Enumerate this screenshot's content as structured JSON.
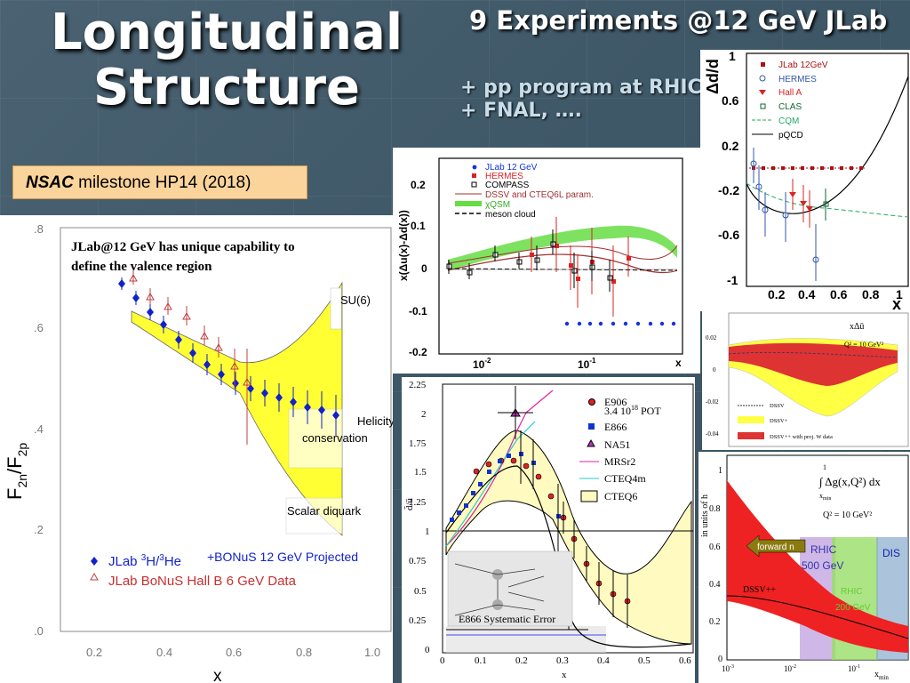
{
  "slide": {
    "title_line1": "Longitudinal",
    "title_line2": "Structure",
    "subtitle": "9 Experiments @12 GeV JLab",
    "extra_line1": "+ pp program at RHIC",
    "extra_line2": "+ FNAL, ….",
    "nsac_bold": "NSAC",
    "nsac_text": " milestone HP14 (2018)"
  },
  "panel_main": {
    "headline_line1": "JLab@12 GeV has unique capability to",
    "headline_line2": "define the valence region",
    "ylabel": "F",
    "ylabel_sub1": "2n",
    "ylabel_sep": "/F",
    "ylabel_sub2": "2p",
    "xlabel": "x",
    "y_ticks": [
      ".8",
      ".6",
      ".4",
      ".2",
      ".0"
    ],
    "x_ticks": [
      "0.2",
      "0.4",
      "0.6",
      "0.8",
      "1.0"
    ],
    "ann_su6": "SU(6)",
    "ann_helicity1": "Helicity",
    "ann_helicity2": "conservation",
    "ann_diquark": "Scalar diquark",
    "legend1_prefix": "JLab ",
    "legend1_sup1": "3",
    "legend1_mid": "H/",
    "legend1_sup2": "3",
    "legend1_end": "He",
    "legend1_extra": "+BONuS 12 GeV Projected",
    "legend2": "JLab BoNuS Hall B 6 GeV Data"
  },
  "panel_dubar": {
    "ylabel": "x(Δu(x)-Δd(x))",
    "xlabel": "x",
    "y_ticks": [
      "0.2",
      "0.1",
      "0",
      "-0.1",
      "-0.2"
    ],
    "x_ticks": [
      "10",
      "10"
    ],
    "x_tick_exps": [
      "-2",
      "-1"
    ],
    "legend": [
      "JLab 12 GeV",
      "HERMES",
      "COMPASS",
      "DSSV and CTEQ6L param.",
      "χQSM",
      "meson cloud"
    ]
  },
  "panel_dd": {
    "ylabel": "Δd/d",
    "xlabel": "x",
    "y_ticks": [
      "1",
      "0.6",
      "0.2",
      "-0.2",
      "-0.6",
      "-1"
    ],
    "x_ticks": [
      "0.2",
      "0.4",
      "0.6",
      "0.8",
      "1"
    ],
    "legend": [
      "JLab 12GeV",
      "HERMES",
      "Hall A",
      "CLAS",
      "CQM",
      "pQCD"
    ]
  },
  "panel_xdu": {
    "label": "xΔū",
    "q2": "Q² = 10 GeV²",
    "y_ticks": [
      "0.02",
      "0",
      "-0.02",
      "-0.04"
    ],
    "legend": [
      "DSSV",
      "DSSV+",
      "DSSV++ with proj. W data"
    ]
  },
  "panel_e906": {
    "ylabel": "d̄/ū",
    "xlabel": "x",
    "y_ticks": [
      "2.25",
      "2",
      "1.75",
      "1.5",
      "1.25",
      "1",
      "0.75",
      "0.5",
      "0.25",
      "0"
    ],
    "x_ticks": [
      "0",
      "0.1",
      "0.2",
      "0.3",
      "0.4",
      "0.5",
      "0.6"
    ],
    "legend": [
      "E906",
      "E866",
      "NA51",
      "MRSr2",
      "CTEQ4m",
      "CTEQ6"
    ],
    "legend_e906_sub": "3.4 10",
    "legend_e906_exp": "18",
    "legend_e906_end": " POT",
    "syst": "E866 Systematic Error"
  },
  "panel_dg": {
    "ylabel": "in units of h",
    "integral": "∫ Δg(x,Q²) dx",
    "int_upper": "1",
    "int_lower": "x",
    "int_lower_sub": "min",
    "q2": "Q² = 10 GeV²",
    "forward": "forward n",
    "rhic1": "RHIC",
    "rhic2": "500 GeV",
    "dis": "DIS",
    "rhic200_1": "RHIC",
    "rhic200_2": "200 GeV",
    "dssv": "DSSV++",
    "y_ticks": [
      "1",
      "0.8",
      "0.6",
      "0.4",
      "0.2",
      "0"
    ],
    "x_ticks": [
      "10",
      "10",
      "10"
    ],
    "x_tick_exps": [
      "-3",
      "-2",
      "-1"
    ],
    "xlabel": "x",
    "xlabel_sub": "min"
  }
}
